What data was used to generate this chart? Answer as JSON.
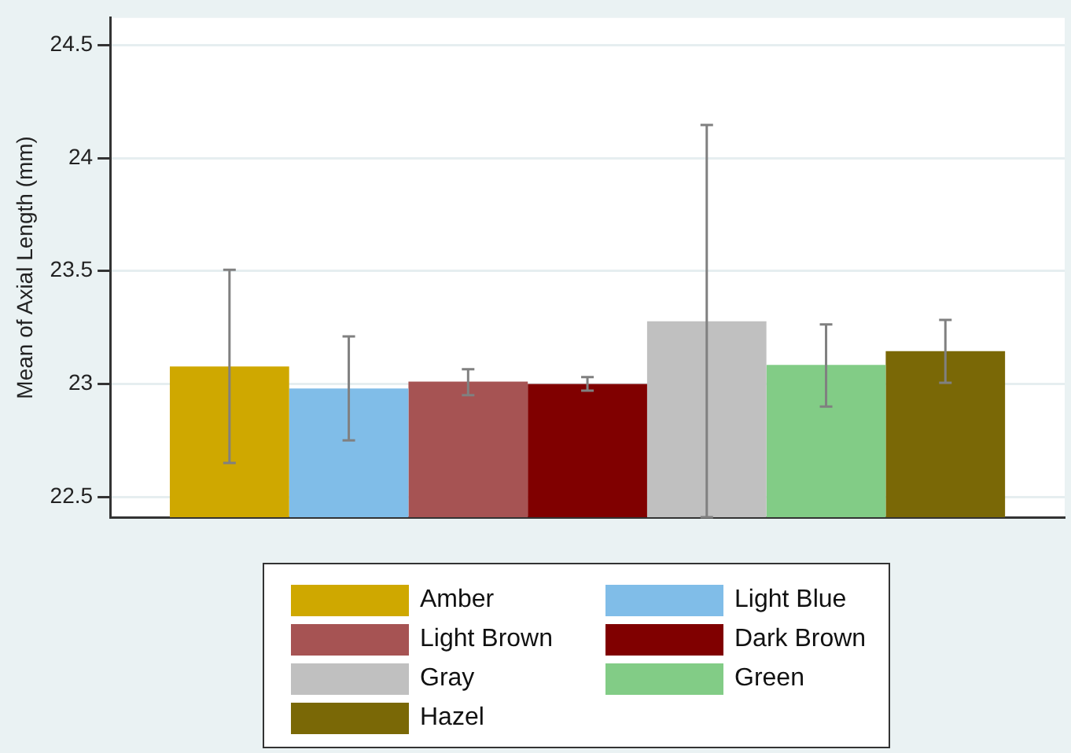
{
  "chart_data": {
    "type": "bar",
    "ylabel": "Mean of Axial Length (mm)",
    "categories": [
      null
    ],
    "series": [
      {
        "name": "Amber",
        "color": "#cfa800",
        "values": [
          23.077
        ],
        "errors": [
          [
            22.65,
            23.505
          ]
        ]
      },
      {
        "name": "Light Blue",
        "color": "#80bde8",
        "values": [
          22.98
        ],
        "errors": [
          [
            22.75,
            23.21
          ]
        ]
      },
      {
        "name": "Light Brown",
        "color": "#a65353",
        "values": [
          23.01
        ],
        "errors": [
          [
            22.95,
            23.065
          ]
        ]
      },
      {
        "name": "Dark Brown",
        "color": "#800000",
        "values": [
          23.0
        ],
        "errors": [
          [
            22.97,
            23.03
          ]
        ]
      },
      {
        "name": "Gray",
        "color": "#c0c0c0",
        "values": [
          23.277
        ],
        "errors": [
          [
            22.41,
            24.146
          ]
        ]
      },
      {
        "name": "Green",
        "color": "#82cc86",
        "values": [
          23.084
        ],
        "errors": [
          [
            22.9,
            23.263
          ]
        ]
      },
      {
        "name": "Hazel",
        "color": "#7a6806",
        "values": [
          23.145
        ],
        "errors": [
          [
            23.005,
            23.283
          ]
        ]
      }
    ],
    "ylim": [
      22.41,
      24.62
    ],
    "yticks": [
      22.5,
      23,
      23.5,
      24,
      24.5
    ],
    "grid": "y",
    "legend": "bottom"
  }
}
